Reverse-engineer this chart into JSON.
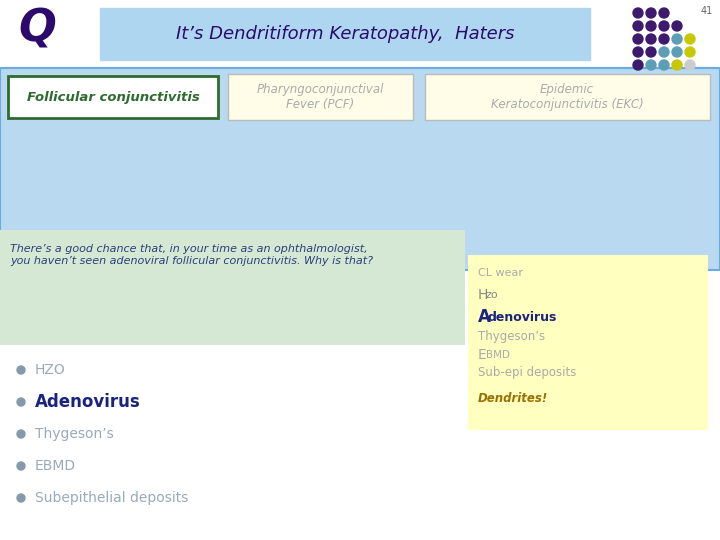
{
  "title_q": "Q",
  "title_main": "It’s Dendritiform Keratopathy,  Haters",
  "slide_number": "41",
  "bg_color": "#ffffff",
  "main_panel_bg": "#b8d9f0",
  "main_panel_border": "#6aace0",
  "col1_text": "Follicular conjunctivitis",
  "col1_bg": "#ffffff",
  "col1_border": "#2e6b2e",
  "col1_text_color": "#2e6b2e",
  "col2_text": "Pharyngoconjunctival\nFever (PCF)",
  "col2_bg": "#fffde7",
  "col2_border": "#bbbbbb",
  "col2_text_color": "#aaaaaa",
  "col3_text": "Epidemic\nKeratoconjunctivitis (EKC)",
  "col3_bg": "#fffde7",
  "col3_border": "#bbbbbb",
  "col3_text_color": "#aaaaaa",
  "title_box_color": "#aed6f1",
  "green_panel_bg": "#d5e8d4",
  "green_panel_text": "There’s a good chance that, in your time as an ophthalmologist,\nyou haven’t seen adenoviral follicular conjunctivitis. Why is that?",
  "green_text_color": "#2c3e7a",
  "yellow_panel_bg": "#ffffc0",
  "yellow_cl": "CL wear",
  "yellow_hzo_H": "H",
  "yellow_hzo_zo": "zo",
  "yellow_A": "A",
  "yellow_denovirus": "denovirus",
  "yellow_thygeson": "Thygeson’s",
  "yellow_E": "E",
  "yellow_BMD": "BMD",
  "yellow_sub": "Sub-epi deposits",
  "yellow_dendrites": "Dendrites!",
  "bullet_items": [
    "HZO",
    "Adenovirus",
    "Thygeson’s",
    "EBMD",
    "Subepithelial deposits"
  ],
  "bullet_bold": [
    false,
    true,
    false,
    false,
    false
  ],
  "bullet_colors": [
    "#9aaabb",
    "#1a237e",
    "#9aaabb",
    "#9aaabb",
    "#9aaabb"
  ],
  "dot_grid": [
    [
      "#3d1a6e",
      "#3d1a6e",
      "#3d1a6e"
    ],
    [
      "#3d1a6e",
      "#3d1a6e",
      "#3d1a6e",
      "#3d1a6e"
    ],
    [
      "#3d1a6e",
      "#3d1a6e",
      "#3d1a6e",
      "#5b9eb5",
      "#c8c800"
    ],
    [
      "#3d1a6e",
      "#3d1a6e",
      "#5b9eb5",
      "#5b9eb5",
      "#c8c800"
    ],
    [
      "#3d1a6e",
      "#5b9eb5",
      "#5b9eb5",
      "#c8c800",
      "#cccccc"
    ]
  ]
}
